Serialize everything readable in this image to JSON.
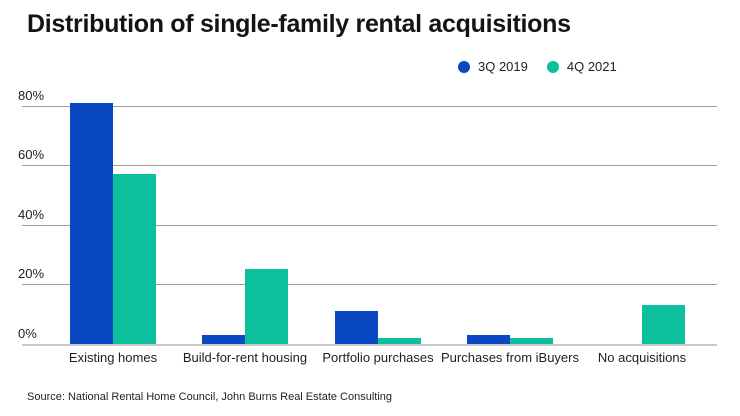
{
  "chart_data": {
    "type": "bar",
    "title": "Distribution of single-family rental acquisitions",
    "categories": [
      "Existing homes",
      "Build-for-rent housing",
      "Portfolio purchases",
      "Purchases from iBuyers",
      "No acquisitions"
    ],
    "series": [
      {
        "name": "3Q 2019",
        "color": "#0a47c2",
        "values": [
          81,
          3,
          11,
          3,
          0
        ]
      },
      {
        "name": "4Q 2021",
        "color": "#0cbf9d",
        "values": [
          57,
          25,
          2,
          2,
          13
        ]
      }
    ],
    "yticks": [
      {
        "value": 80,
        "label": "80%"
      },
      {
        "value": 60,
        "label": "60%"
      },
      {
        "value": 40,
        "label": "40%"
      },
      {
        "value": 20,
        "label": "20%"
      },
      {
        "value": 0,
        "label": "0%"
      }
    ],
    "ylim": [
      0,
      83
    ],
    "grid": true,
    "legend_position": "top-right",
    "source": "Source: National Rental Home Council, John Burns Real Estate Consulting"
  }
}
